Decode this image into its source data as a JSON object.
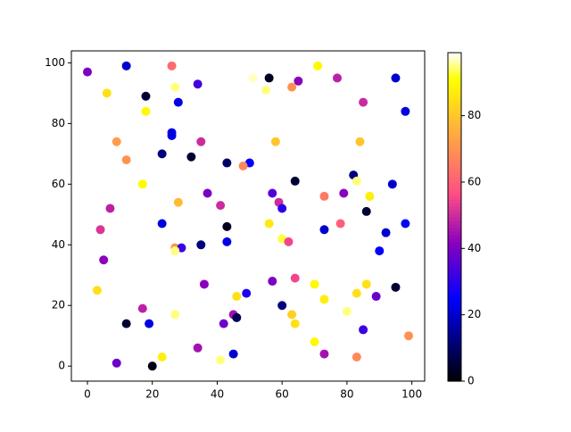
{
  "chart_data": {
    "type": "scatter",
    "x": [
      0,
      12,
      26,
      6,
      18,
      27,
      34,
      28,
      18,
      9,
      26,
      26,
      35,
      12,
      23,
      32,
      43,
      50,
      48,
      17,
      37,
      7,
      28,
      41,
      23,
      43,
      4,
      27,
      29,
      27,
      35,
      43,
      5,
      3,
      36,
      17,
      12,
      19,
      27,
      9,
      20,
      23,
      34,
      41,
      45,
      42,
      45,
      46,
      46,
      49,
      51,
      55,
      56,
      63,
      65,
      71,
      77,
      58,
      64,
      57,
      59,
      60,
      56,
      60,
      62,
      57,
      60,
      64,
      63,
      64,
      70,
      73,
      70,
      73,
      83,
      73,
      73,
      78,
      79,
      82,
      84,
      85,
      83,
      87,
      86,
      80,
      83,
      86,
      85,
      89,
      90,
      92,
      94,
      95,
      95,
      98,
      98,
      99
    ],
    "y": [
      97,
      99,
      99,
      90,
      89,
      92,
      93,
      87,
      84,
      74,
      77,
      76,
      74,
      68,
      70,
      69,
      67,
      67,
      66,
      60,
      57,
      52,
      54,
      53,
      47,
      46,
      45,
      39,
      39,
      38,
      40,
      41,
      35,
      25,
      27,
      19,
      14,
      14,
      17,
      1,
      0,
      3,
      6,
      2,
      4,
      14,
      17,
      16,
      23,
      24,
      95,
      91,
      95,
      92,
      94,
      99,
      95,
      74,
      61,
      57,
      54,
      52,
      47,
      42,
      41,
      28,
      20,
      29,
      17,
      14,
      27,
      22,
      8,
      4,
      3,
      56,
      45,
      47,
      57,
      63,
      74,
      87,
      61,
      56,
      51,
      18,
      24,
      27,
      12,
      23,
      38,
      44,
      60,
      26,
      95,
      84,
      47,
      10
    ],
    "c": [
      40,
      20,
      62,
      85,
      5,
      95,
      33,
      22,
      90,
      72,
      22,
      22,
      50,
      70,
      12,
      5,
      10,
      25,
      68,
      90,
      40,
      48,
      78,
      50,
      22,
      3,
      52,
      70,
      32,
      95,
      12,
      22,
      42,
      85,
      42,
      48,
      5,
      22,
      95,
      38,
      2,
      88,
      45,
      95,
      20,
      38,
      45,
      8,
      85,
      28,
      97,
      95,
      3,
      70,
      42,
      90,
      48,
      80,
      5,
      35,
      50,
      30,
      87,
      93,
      55,
      40,
      12,
      55,
      82,
      85,
      90,
      88,
      90,
      45,
      68,
      65,
      20,
      60,
      42,
      12,
      80,
      50,
      95,
      88,
      5,
      95,
      85,
      85,
      32,
      38,
      25,
      20,
      20,
      5,
      20,
      22,
      25,
      70
    ],
    "cmap": "gnuplot2",
    "clim": [
      0,
      99
    ],
    "cticks": [
      0,
      20,
      40,
      60,
      80
    ],
    "xlim": [
      -4.95,
      103.95
    ],
    "ylim": [
      -4.95,
      103.95
    ],
    "xticks": [
      0,
      20,
      40,
      60,
      80,
      100
    ],
    "yticks": [
      0,
      20,
      40,
      60,
      80,
      100
    ]
  }
}
